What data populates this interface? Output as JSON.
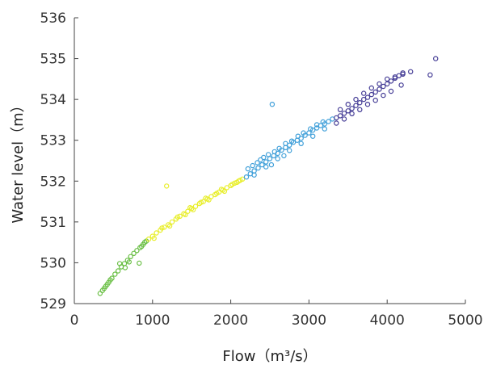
{
  "chart_data": {
    "type": "scatter",
    "title": "",
    "xlabel": "Flow（m³/s）",
    "ylabel": "Water level（m）",
    "xlim": [
      0,
      5000
    ],
    "ylim": [
      529,
      536
    ],
    "xticks": [
      0,
      1000,
      2000,
      3000,
      4000,
      5000
    ],
    "yticks": [
      529,
      530,
      531,
      532,
      533,
      534,
      535,
      536
    ],
    "xtick_labels": [
      "0",
      "1000",
      "2000",
      "3000",
      "4000",
      "5000"
    ],
    "ytick_labels": [
      "529",
      "530",
      "531",
      "532",
      "533",
      "534",
      "535",
      "536"
    ],
    "grid": false,
    "legend": "none",
    "marker": "open-circle",
    "series": [
      {
        "color": "#6abf45",
        "points": [
          [
            330,
            529.25
          ],
          [
            360,
            529.32
          ],
          [
            400,
            529.42
          ],
          [
            440,
            529.52
          ],
          [
            480,
            529.62
          ],
          [
            520,
            529.72
          ],
          [
            560,
            529.8
          ],
          [
            600,
            529.9
          ],
          [
            640,
            529.98
          ],
          [
            680,
            530.06
          ],
          [
            720,
            530.15
          ],
          [
            760,
            530.23
          ],
          [
            800,
            530.3
          ],
          [
            840,
            530.37
          ],
          [
            880,
            530.45
          ],
          [
            920,
            530.53
          ],
          [
            580,
            529.98
          ],
          [
            830,
            529.99
          ],
          [
            650,
            529.88
          ],
          [
            700,
            530.02
          ],
          [
            860,
            530.4
          ],
          [
            900,
            530.5
          ],
          [
            380,
            529.37
          ],
          [
            420,
            529.47
          ],
          [
            460,
            529.58
          ]
        ]
      },
      {
        "color": "#e8ee2a",
        "points": [
          [
            950,
            530.58
          ],
          [
            1000,
            530.65
          ],
          [
            1050,
            530.73
          ],
          [
            1100,
            530.8
          ],
          [
            1150,
            530.87
          ],
          [
            1200,
            530.93
          ],
          [
            1250,
            531.0
          ],
          [
            1300,
            531.07
          ],
          [
            1350,
            531.14
          ],
          [
            1400,
            531.2
          ],
          [
            1450,
            531.26
          ],
          [
            1500,
            531.33
          ],
          [
            1550,
            531.38
          ],
          [
            1600,
            531.45
          ],
          [
            1650,
            531.5
          ],
          [
            1700,
            531.56
          ],
          [
            1750,
            531.62
          ],
          [
            1800,
            531.67
          ],
          [
            1850,
            531.73
          ],
          [
            1900,
            531.78
          ],
          [
            1950,
            531.84
          ],
          [
            2000,
            531.89
          ],
          [
            2050,
            531.95
          ],
          [
            2100,
            532.0
          ],
          [
            2150,
            532.05
          ],
          [
            1180,
            531.88
          ],
          [
            1020,
            530.6
          ],
          [
            1120,
            530.85
          ],
          [
            1220,
            530.9
          ],
          [
            1320,
            531.12
          ],
          [
            1420,
            531.18
          ],
          [
            1520,
            531.3
          ],
          [
            1620,
            531.48
          ],
          [
            1720,
            531.54
          ],
          [
            1820,
            531.7
          ],
          [
            1920,
            531.75
          ],
          [
            2020,
            531.92
          ],
          [
            2120,
            532.02
          ],
          [
            1480,
            531.35
          ],
          [
            1680,
            531.58
          ],
          [
            1880,
            531.8
          ],
          [
            2080,
            531.97
          ]
        ]
      },
      {
        "color": "#3f9fd9",
        "points": [
          [
            2200,
            532.1
          ],
          [
            2250,
            532.18
          ],
          [
            2300,
            532.25
          ],
          [
            2350,
            532.32
          ],
          [
            2400,
            532.4
          ],
          [
            2450,
            532.47
          ],
          [
            2500,
            532.55
          ],
          [
            2550,
            532.62
          ],
          [
            2600,
            532.68
          ],
          [
            2650,
            532.76
          ],
          [
            2700,
            532.82
          ],
          [
            2750,
            532.88
          ],
          [
            2800,
            532.95
          ],
          [
            2850,
            533.0
          ],
          [
            2900,
            533.05
          ],
          [
            2950,
            533.12
          ],
          [
            3000,
            533.18
          ],
          [
            3050,
            533.25
          ],
          [
            3100,
            533.3
          ],
          [
            3150,
            533.36
          ],
          [
            3200,
            533.4
          ],
          [
            3250,
            533.46
          ],
          [
            3300,
            533.52
          ],
          [
            2530,
            533.88
          ],
          [
            2220,
            532.3
          ],
          [
            2280,
            532.38
          ],
          [
            2340,
            532.45
          ],
          [
            2420,
            532.58
          ],
          [
            2480,
            532.65
          ],
          [
            2560,
            532.72
          ],
          [
            2620,
            532.8
          ],
          [
            2700,
            532.92
          ],
          [
            2780,
            532.98
          ],
          [
            2860,
            533.1
          ],
          [
            2930,
            533.18
          ],
          [
            3020,
            533.28
          ],
          [
            3100,
            533.38
          ],
          [
            3180,
            533.45
          ],
          [
            2300,
            532.15
          ],
          [
            2450,
            532.35
          ],
          [
            2600,
            532.55
          ],
          [
            2750,
            532.75
          ],
          [
            2900,
            532.92
          ],
          [
            3050,
            533.1
          ],
          [
            3200,
            533.28
          ],
          [
            2380,
            532.52
          ],
          [
            2520,
            532.4
          ],
          [
            2680,
            532.62
          ]
        ]
      },
      {
        "color": "#453d96",
        "points": [
          [
            3350,
            533.55
          ],
          [
            3400,
            533.6
          ],
          [
            3450,
            533.66
          ],
          [
            3500,
            533.72
          ],
          [
            3550,
            533.78
          ],
          [
            3600,
            533.85
          ],
          [
            3650,
            533.92
          ],
          [
            3700,
            534.0
          ],
          [
            3750,
            534.05
          ],
          [
            3800,
            534.12
          ],
          [
            3850,
            534.18
          ],
          [
            3900,
            534.25
          ],
          [
            3950,
            534.32
          ],
          [
            4000,
            534.38
          ],
          [
            4050,
            534.45
          ],
          [
            4100,
            534.52
          ],
          [
            4150,
            534.58
          ],
          [
            4200,
            534.65
          ],
          [
            4300,
            534.68
          ],
          [
            4550,
            534.6
          ],
          [
            4620,
            535.0
          ],
          [
            3400,
            533.75
          ],
          [
            3500,
            533.88
          ],
          [
            3600,
            534.0
          ],
          [
            3700,
            534.15
          ],
          [
            3800,
            534.28
          ],
          [
            3900,
            534.38
          ],
          [
            4000,
            534.5
          ],
          [
            4100,
            534.55
          ],
          [
            4200,
            534.62
          ],
          [
            3350,
            533.42
          ],
          [
            3450,
            533.52
          ],
          [
            3550,
            533.65
          ],
          [
            3650,
            533.75
          ],
          [
            3750,
            533.88
          ],
          [
            3850,
            533.98
          ],
          [
            3950,
            534.1
          ],
          [
            4050,
            534.2
          ],
          [
            4180,
            534.35
          ]
        ]
      }
    ]
  }
}
